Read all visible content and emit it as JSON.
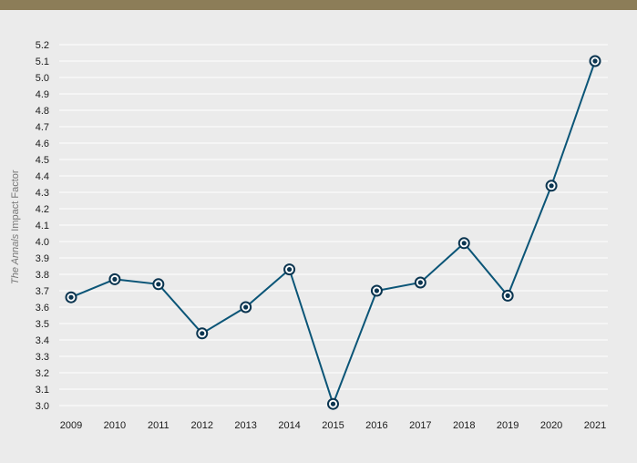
{
  "page": {
    "header_bar_color": "#8c7d58",
    "background_color": "#ebebeb"
  },
  "chart_data": {
    "type": "line",
    "title": "",
    "xlabel": "",
    "ylabel_italic": "The Annals",
    "ylabel_rest": " Impact Factor",
    "categories": [
      "2009",
      "2010",
      "2011",
      "2012",
      "2013",
      "2014",
      "2015",
      "2016",
      "2017",
      "2018",
      "2019",
      "2020",
      "2021"
    ],
    "series": [
      {
        "values": [
          3.66,
          3.77,
          3.74,
          3.44,
          3.6,
          3.83,
          3.01,
          3.7,
          3.75,
          3.99,
          3.67,
          4.34,
          5.1
        ]
      }
    ],
    "ylim": [
      3.0,
      5.2
    ],
    "yticks": [
      "3.0",
      "3.1",
      "3.2",
      "3.3",
      "3.4",
      "3.5",
      "3.6",
      "3.7",
      "3.8",
      "3.9",
      "4.0",
      "4.1",
      "4.2",
      "4.3",
      "4.4",
      "4.5",
      "4.6",
      "4.7",
      "4.8",
      "4.9",
      "5.0",
      "5.1",
      "5.2"
    ],
    "grid": true,
    "legend": "none",
    "line_color": "#0b5577",
    "marker_fill": "#ffffff",
    "marker_center": "#0b3550"
  }
}
